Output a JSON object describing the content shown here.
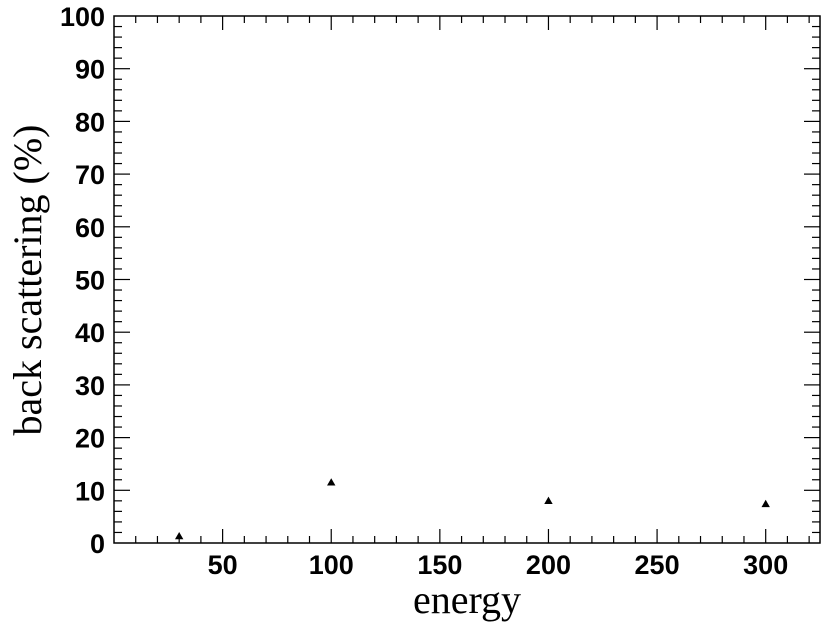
{
  "chart_data": {
    "type": "scatter",
    "title": "",
    "xlabel": "energy",
    "ylabel": "back scattering (%)",
    "xlim": [
      0,
      325
    ],
    "ylim": [
      0,
      100
    ],
    "x_ticks": [
      50,
      100,
      150,
      200,
      250,
      300
    ],
    "x_tick_labels": [
      "50",
      "100",
      "150",
      "200",
      "250",
      "300"
    ],
    "y_ticks": [
      0,
      10,
      20,
      30,
      40,
      50,
      60,
      70,
      80,
      90,
      100
    ],
    "y_tick_labels": [
      "0",
      "10",
      "20",
      "30",
      "40",
      "50",
      "60",
      "70",
      "80",
      "90",
      "100"
    ],
    "grid": false,
    "marker": "triangle",
    "marker_color": "#000000",
    "x": [
      30,
      100,
      200,
      300
    ],
    "y": [
      1.3,
      11.5,
      8.0,
      7.4
    ]
  }
}
